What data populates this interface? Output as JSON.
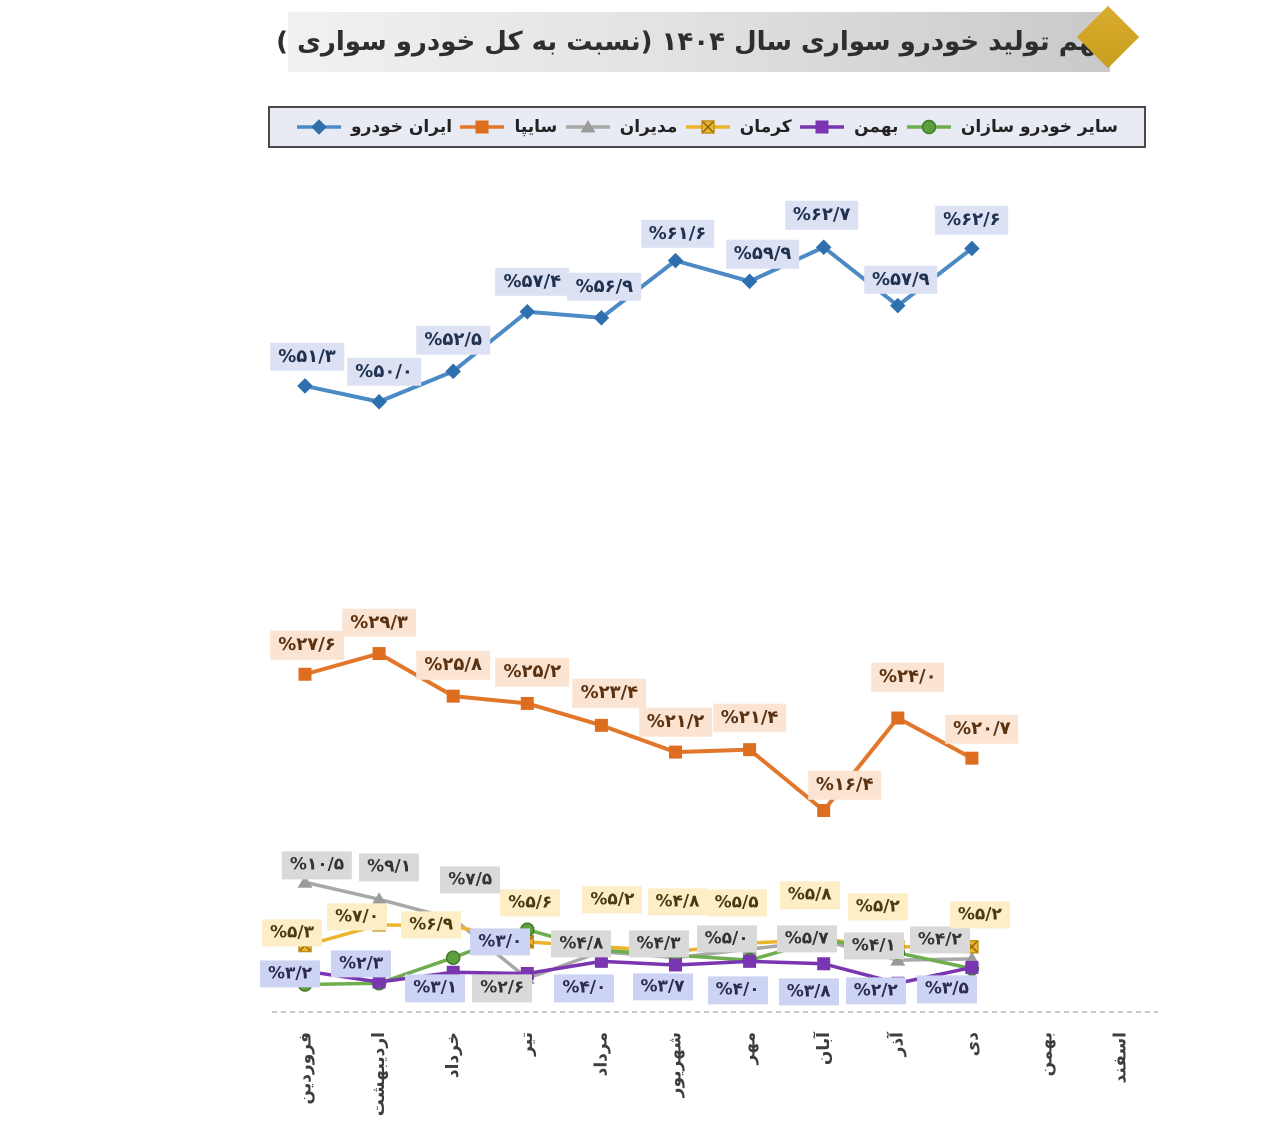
{
  "title": {
    "text": "سهم تولید خودرو سواری سال ۱۴۰۴ (نسبت به کل خودرو سواری )"
  },
  "accent_colors": {
    "title_diamond": "#cfa227",
    "title_bar_gray": "#d9d9d9",
    "legend_bg": "#e8eaf4"
  },
  "chart_data": {
    "type": "line",
    "title": "سهم تولید خودرو سواری سال ۱۴۰۴ (نسبت به کل خودرو سواری )",
    "categories": [
      "فروردین",
      "اردیبهشت",
      "خرداد",
      "تیر",
      "مرداد",
      "شهریور",
      "مهر",
      "آبان",
      "آذر",
      "دی",
      "بهمن",
      "اسفند"
    ],
    "ylim": [
      0,
      68
    ],
    "grid": false,
    "legend_position": "top",
    "xlabel": "",
    "ylabel": "",
    "series": [
      {
        "id": "iran",
        "name": "ایران خودرو",
        "marker": "diamond",
        "color": "#4b8ac5",
        "marker_color": "#2e6fad",
        "label_bg": "#dce1f3",
        "label_text": "#20324f",
        "values": [
          51.3,
          50.0,
          52.5,
          57.4,
          56.9,
          61.6,
          59.9,
          62.7,
          57.9,
          62.6
        ],
        "labels": [
          "%۵۱/۳",
          "%۵۰/۰",
          "%۵۲/۵",
          "%۵۷/۴",
          "%۵۶/۹",
          "%۶۱/۶",
          "%۵۹/۹",
          "%۶۲/۷",
          "%۵۷/۹",
          "%۶۲/۶"
        ]
      },
      {
        "id": "saipa",
        "name": "سایپا",
        "marker": "square",
        "color": "#e2772b",
        "marker_color": "#dd6e1f",
        "label_bg": "#fbe4d2",
        "label_text": "#5a3212",
        "values": [
          27.6,
          29.3,
          25.8,
          25.2,
          23.4,
          21.2,
          21.4,
          16.4,
          24.0,
          20.7
        ],
        "labels": [
          "%۲۷/۶",
          "%۲۹/۳",
          "%۲۵/۸",
          "%۲۵/۲",
          "%۲۳/۴",
          "%۲۱/۲",
          "%۲۱/۴",
          "%۱۶/۴",
          "%۲۴/۰",
          "%۲۰/۷"
        ]
      },
      {
        "id": "modiran",
        "name": "مدیران",
        "marker": "triangle",
        "color": "#a8a8a8",
        "marker_color": "#9b9b9b",
        "label_bg": "#d9d9d9",
        "label_text": "#333333",
        "values": [
          10.5,
          9.1,
          7.5,
          2.6,
          4.8,
          4.3,
          5.0,
          5.7,
          4.1,
          4.2
        ],
        "labels": [
          "%۱۰/۵",
          "%۹/۱",
          "%۷/۵",
          "%۲/۶",
          "%۴/۸",
          "%۴/۳",
          "%۵/۰",
          "%۵/۷",
          "%۴/۱",
          "%۴/۲"
        ]
      },
      {
        "id": "kerman",
        "name": "کرمان",
        "marker": "xsquare",
        "color": "#ecb32f",
        "marker_color": "#f0b62f",
        "label_bg": "#fdeec6",
        "label_text": "#4a3a10",
        "values": [
          5.3,
          7.0,
          6.9,
          5.6,
          5.2,
          4.8,
          5.5,
          5.8,
          5.2,
          5.2
        ],
        "labels": [
          "%۵/۳",
          "%۷/۰",
          "%۶/۹",
          "%۵/۶",
          "%۵/۲",
          "%۴/۸",
          "%۵/۵",
          "%۵/۸",
          "%۵/۲",
          "%۵/۲"
        ]
      },
      {
        "id": "bahman",
        "name": "بهمن",
        "marker": "square",
        "color": "#7a36b1",
        "marker_color": "#7a36b1",
        "label_bg": "#cdd3f3",
        "label_text": "#2e2a52",
        "values": [
          3.2,
          2.3,
          3.1,
          3.0,
          4.0,
          3.7,
          4.0,
          3.8,
          2.2,
          3.5
        ],
        "labels": [
          "%۳/۲",
          "%۲/۳",
          "%۳/۱",
          "%۳/۰",
          "%۴/۰",
          "%۳/۷",
          "%۴/۰",
          "%۳/۸",
          "%۲/۲",
          "%۳/۵"
        ]
      },
      {
        "id": "other",
        "name": "سایر خودرو سازان",
        "marker": "circle",
        "color": "#6fae4e",
        "marker_color": "#5f9e3f",
        "label_bg": "#e2efd9",
        "label_text": "#2f5218",
        "values": [
          2.1,
          2.2,
          4.3,
          6.6,
          4.9,
          4.5,
          4.1,
          5.8,
          4.7,
          3.4
        ],
        "labels": []
      }
    ]
  }
}
